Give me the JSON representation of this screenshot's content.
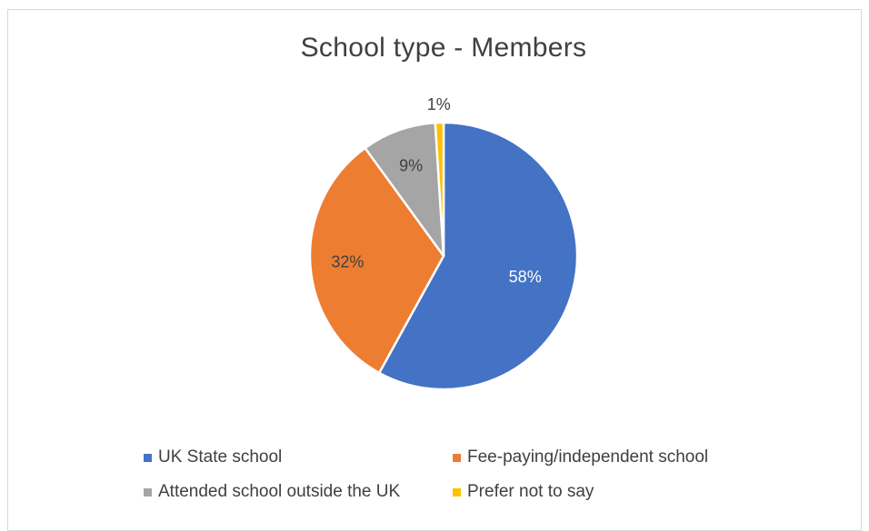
{
  "chart_data": {
    "type": "pie",
    "title": "School type - Members",
    "slices": [
      {
        "name": "UK State school",
        "value": 58,
        "label": "58%",
        "color": "#4472C4"
      },
      {
        "name": "Fee-paying/independent school",
        "value": 32,
        "label": "32%",
        "color": "#ED7D31"
      },
      {
        "name": "Attended school outside the UK",
        "value": 9,
        "label": "9%",
        "color": "#A5A5A5"
      },
      {
        "name": "Prefer not to say",
        "value": 1,
        "label": "1%",
        "color": "#FFC000"
      }
    ],
    "legend_position": "bottom"
  }
}
